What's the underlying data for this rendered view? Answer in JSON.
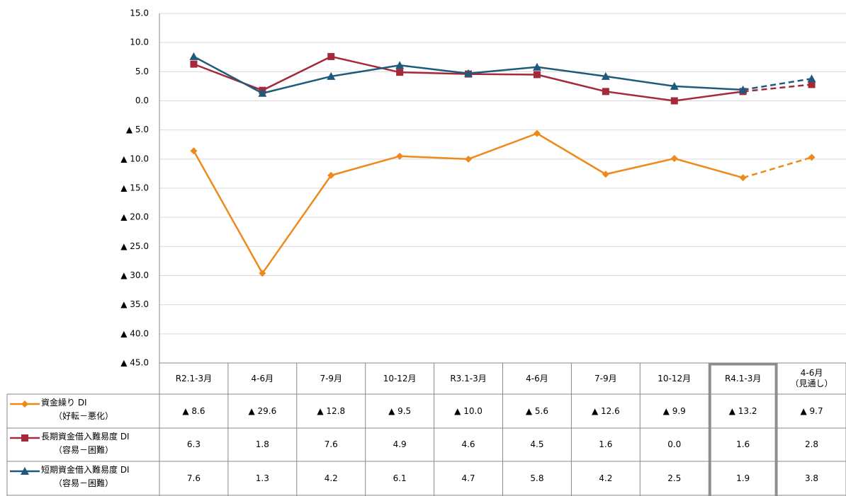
{
  "chart_data": {
    "type": "line",
    "categories": [
      "R2.1-3月",
      "4-6月",
      "7-9月",
      "10-12月",
      "R3.1-3月",
      "4-6月",
      "7-9月",
      "10-12月",
      "R4.1-3月",
      "4-6月\n（見通し）"
    ],
    "series": [
      {
        "name": "資金繰り DI",
        "subname": "（好転－悪化）",
        "color": "#EE8A1C",
        "marker": "diamond",
        "values": [
          -8.6,
          -29.6,
          -12.8,
          -9.5,
          -10.0,
          -5.6,
          -12.6,
          -9.9,
          -13.2,
          -9.7
        ],
        "value_labels": [
          "▲ 8.6",
          "▲ 29.6",
          "▲ 12.8",
          "▲ 9.5",
          "▲ 10.0",
          "▲ 5.6",
          "▲ 12.6",
          "▲ 9.9",
          "▲ 13.2",
          "▲ 9.7"
        ]
      },
      {
        "name": "長期資金借入難易度 DI",
        "subname": "（容易－困難）",
        "color": "#A3293B",
        "marker": "square",
        "values": [
          6.3,
          1.8,
          7.6,
          4.9,
          4.6,
          4.5,
          1.6,
          0.0,
          1.6,
          2.8
        ],
        "value_labels": [
          "6.3",
          "1.8",
          "7.6",
          "4.9",
          "4.6",
          "4.5",
          "1.6",
          "0.0",
          "1.6",
          "2.8"
        ]
      },
      {
        "name": "短期資金借入難易度 DI",
        "subname": "（容易－困難）",
        "color": "#1F5A7C",
        "marker": "triangle",
        "values": [
          7.6,
          1.3,
          4.2,
          6.1,
          4.7,
          5.8,
          4.2,
          2.5,
          1.9,
          3.8
        ],
        "value_labels": [
          "7.6",
          "1.3",
          "4.2",
          "6.1",
          "4.7",
          "5.8",
          "4.2",
          "2.5",
          "1.9",
          "3.8"
        ]
      }
    ],
    "ylim": [
      -45,
      15
    ],
    "yticks": [
      {
        "value": 15,
        "label": "15.0"
      },
      {
        "value": 10,
        "label": "10.0"
      },
      {
        "value": 5,
        "label": "5.0"
      },
      {
        "value": 0,
        "label": "0.0"
      },
      {
        "value": -5,
        "label": "▲ 5.0"
      },
      {
        "value": -10,
        "label": "▲ 10.0"
      },
      {
        "value": -15,
        "label": "▲ 15.0"
      },
      {
        "value": -20,
        "label": "▲ 20.0"
      },
      {
        "value": -25,
        "label": "▲ 25.0"
      },
      {
        "value": -30,
        "label": "▲ 30.0"
      },
      {
        "value": -35,
        "label": "▲ 35.0"
      },
      {
        "value": -40,
        "label": "▲ 40.0"
      },
      {
        "value": -45,
        "label": "▲ 45.0"
      }
    ],
    "grid": true,
    "forecast_last_point": true,
    "highlight_category": 8
  }
}
